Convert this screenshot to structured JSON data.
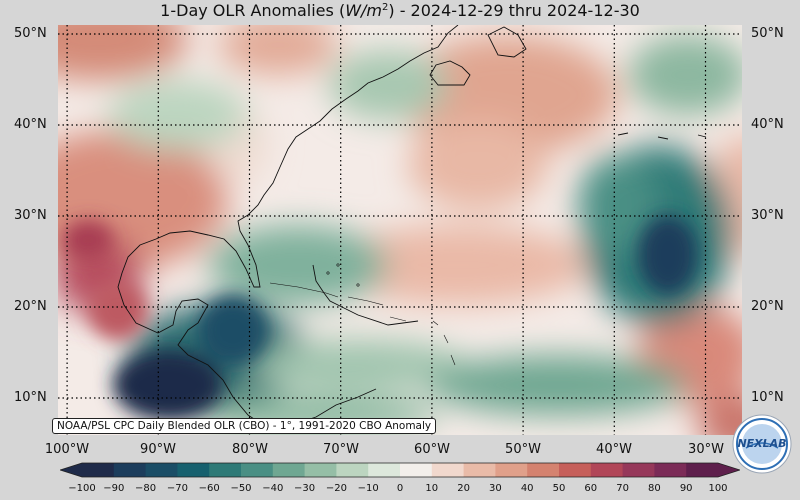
{
  "title": {
    "prefix": "1-Day OLR Anomalies (",
    "unit_base": "W/m",
    "unit_exp": "2",
    "suffix": ") - 2024-12-29 thru 2024-12-30"
  },
  "map": {
    "projection": "equirectangular",
    "lon_range": [
      -101,
      -26
    ],
    "lat_range": [
      6,
      51
    ],
    "grid": "dotted",
    "colormap": "diverging teal-white-red (negative teal/green, positive red/purple)"
  },
  "lat_labels": [
    "50°N",
    "40°N",
    "30°N",
    "20°N",
    "10°N"
  ],
  "lat_values": [
    50,
    40,
    30,
    20,
    10
  ],
  "lon_labels": [
    "100°W",
    "90°W",
    "80°W",
    "70°W",
    "60°W",
    "50°W",
    "40°W",
    "30°W"
  ],
  "lon_values": [
    -100,
    -90,
    -80,
    -70,
    -60,
    -50,
    -40,
    -30
  ],
  "source_note": "NOAA/PSL CPC Daily Blended OLR (CBO) - 1°, 1991-2020 CBO Anomaly",
  "colorbar": {
    "ticks": [
      "−100",
      "−90",
      "−80",
      "−70",
      "−60",
      "−50",
      "−40",
      "−30",
      "−20",
      "−10",
      "0",
      "10",
      "20",
      "30",
      "40",
      "50",
      "60",
      "70",
      "80",
      "90",
      "100"
    ],
    "min": -100,
    "max": 100,
    "colors": [
      "#1f2b4a",
      "#1c3d5c",
      "#1a4d66",
      "#16606e",
      "#2e7a77",
      "#4a8f84",
      "#6fa792",
      "#95bea6",
      "#bcd5c0",
      "#dde8dc",
      "#f3efeb",
      "#f1d8cd",
      "#e9bba8",
      "#e0a08a",
      "#d4826f",
      "#c65f5a",
      "#b14658",
      "#96385a",
      "#7b2b57",
      "#5e1f4c"
    ]
  },
  "logo": {
    "text": "NEXLAB",
    "colors": {
      "ring": "#2e6fb5",
      "earth": "#bcd4ee"
    }
  }
}
